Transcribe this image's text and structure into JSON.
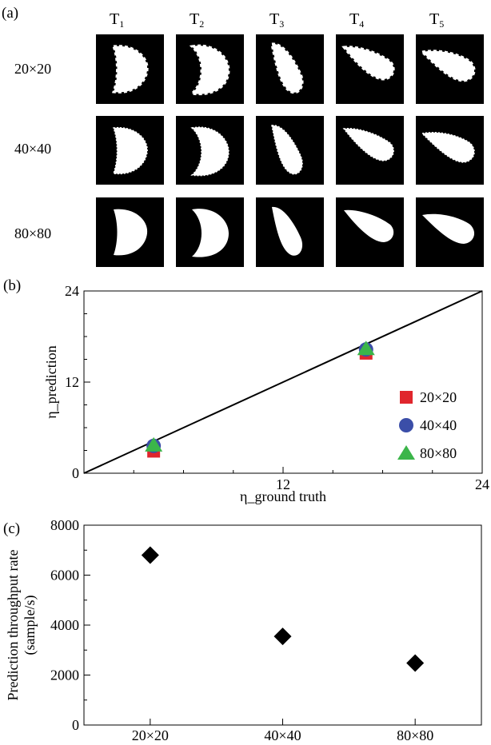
{
  "panels": {
    "a": {
      "label": "(a)",
      "columns": [
        {
          "base": "T",
          "sub": "1"
        },
        {
          "base": "T",
          "sub": "2"
        },
        {
          "base": "T",
          "sub": "3"
        },
        {
          "base": "T",
          "sub": "4"
        },
        {
          "base": "T",
          "sub": "5"
        }
      ],
      "rows": [
        "20×20",
        "40×40",
        "80×80"
      ]
    },
    "b": {
      "label": "(b)"
    },
    "c": {
      "label": "(c)"
    }
  },
  "chart_data": [
    {
      "type": "scatter",
      "panel": "b",
      "xlabel": "η_ground truth",
      "ylabel": "η_prediction",
      "xlim": [
        0,
        24
      ],
      "ylim": [
        0,
        24
      ],
      "xticks": [
        12,
        24
      ],
      "yticks": [
        0,
        12,
        24
      ],
      "reference_line": {
        "x": [
          0,
          24
        ],
        "y": [
          0,
          24
        ],
        "color": "#000000"
      },
      "legend_position": "center-right",
      "series": [
        {
          "name": "20×20",
          "marker": "square",
          "color": "#e0262d",
          "x": [
            4.2,
            17.0
          ],
          "y": [
            2.9,
            15.8
          ]
        },
        {
          "name": "40×40",
          "marker": "circle",
          "color": "#3b4ea8",
          "x": [
            4.2,
            17.0
          ],
          "y": [
            3.6,
            16.3
          ]
        },
        {
          "name": "80×80",
          "marker": "triangle",
          "color": "#3bb54a",
          "x": [
            4.2,
            17.0
          ],
          "y": [
            3.7,
            16.4
          ]
        }
      ]
    },
    {
      "type": "scatter",
      "panel": "c",
      "xlabel": "",
      "ylabel": "Prediction throughput rate (sample/s)",
      "ylabel_lines": [
        "Prediction throughput rate",
        "(sample/s)"
      ],
      "categories": [
        "20×20",
        "40×40",
        "80×80"
      ],
      "values": [
        6800,
        3550,
        2480
      ],
      "ylim": [
        0,
        8000
      ],
      "yticks": [
        0,
        2000,
        4000,
        6000,
        8000
      ],
      "marker": "diamond",
      "color": "#000000"
    }
  ]
}
